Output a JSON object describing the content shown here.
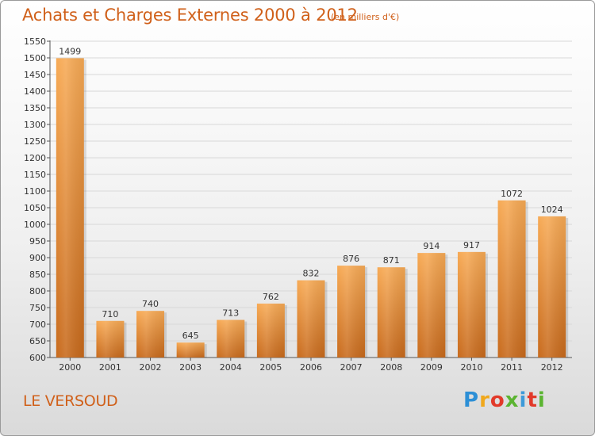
{
  "title": "Achats et Charges Externes 2000 à 2012",
  "subtitle": "(en milliers d'€)",
  "commune": "LE VERSOUD",
  "logo": {
    "letters": [
      "P",
      "r",
      "o",
      "x",
      "i",
      "t",
      "i"
    ],
    "colors": [
      "#2c8fd6",
      "#f0a81c",
      "#e23a2a",
      "#5bb431",
      "#3d9ad9",
      "#e2392a",
      "#5bb431"
    ]
  },
  "colors": {
    "bar_top": "#f7aa55",
    "bar_bottom": "#c86a1c",
    "text_accent": "#d0601a",
    "grid": "#d8d8d8"
  },
  "chart_data": {
    "type": "bar",
    "categories": [
      "2000",
      "2001",
      "2002",
      "2003",
      "2004",
      "2005",
      "2006",
      "2007",
      "2008",
      "2009",
      "2010",
      "2011",
      "2012"
    ],
    "values": [
      1499,
      710,
      740,
      645,
      713,
      762,
      832,
      876,
      871,
      914,
      917,
      1072,
      1024
    ],
    "ylim": [
      600,
      1550
    ],
    "yticks": [
      600,
      650,
      700,
      750,
      800,
      850,
      900,
      950,
      1000,
      1050,
      1100,
      1150,
      1200,
      1250,
      1300,
      1350,
      1400,
      1450,
      1500,
      1550
    ],
    "grid": true,
    "data_labels": true
  }
}
